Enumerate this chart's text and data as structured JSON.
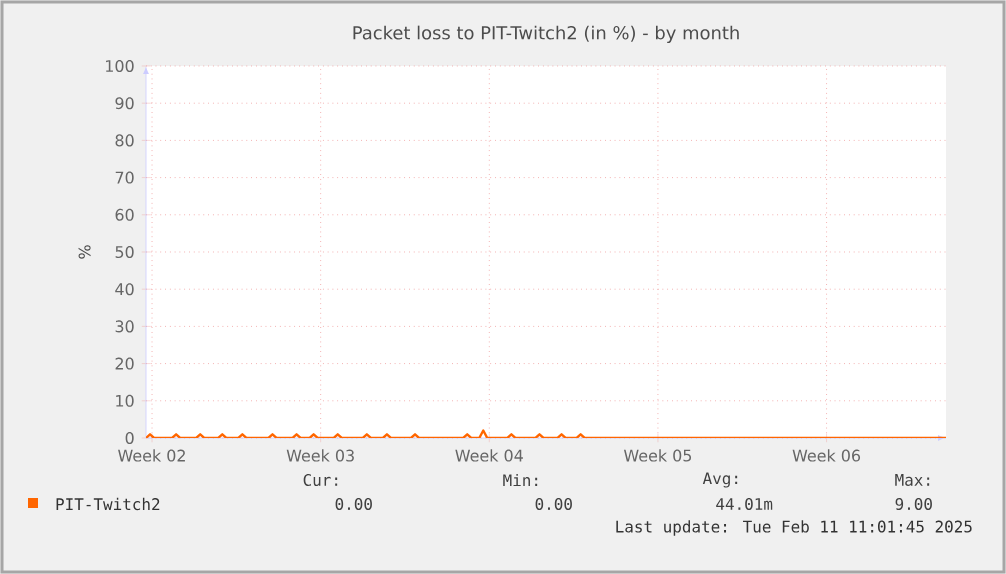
{
  "chart_data": {
    "type": "line",
    "title": "Packet loss to PIT-Twitch2 (in %) - by month",
    "ylabel": "%",
    "xlim": [
      "2025-01-09T06:00",
      "2025-02-11T11:00"
    ],
    "ylim": [
      0,
      100
    ],
    "xticks": [
      {
        "value": "2025-01-09T12:00",
        "label": "Week 02"
      },
      {
        "value": "2025-01-16T12:00",
        "label": "Week 03"
      },
      {
        "value": "2025-01-23T12:00",
        "label": "Week 04"
      },
      {
        "value": "2025-01-30T12:00",
        "label": "Week 05"
      },
      {
        "value": "2025-02-06T12:00",
        "label": "Week 06"
      }
    ],
    "yticks": [
      0,
      10,
      20,
      30,
      40,
      50,
      60,
      70,
      80,
      90,
      100
    ],
    "grid": true,
    "legend": "bottom",
    "series": [
      {
        "name": "PIT-Twitch2",
        "color": "#ff6600",
        "x": [
          "2025-01-09T06:00",
          "2025-01-09T10:00",
          "2025-01-09T14:00",
          "2025-01-10T08:00",
          "2025-01-10T12:00",
          "2025-01-10T16:00",
          "2025-01-11T08:00",
          "2025-01-11T12:00",
          "2025-01-11T16:00",
          "2025-01-12T06:00",
          "2025-01-12T10:00",
          "2025-01-12T14:00",
          "2025-01-13T02:00",
          "2025-01-13T06:00",
          "2025-01-13T10:00",
          "2025-01-14T08:00",
          "2025-01-14T12:00",
          "2025-01-14T16:00",
          "2025-01-15T08:00",
          "2025-01-15T12:00",
          "2025-01-15T16:00",
          "2025-01-16T01:00",
          "2025-01-16T05:00",
          "2025-01-16T09:00",
          "2025-01-17T01:00",
          "2025-01-17T05:00",
          "2025-01-17T09:00",
          "2025-01-18T06:00",
          "2025-01-18T10:00",
          "2025-01-18T14:00",
          "2025-01-19T02:00",
          "2025-01-19T06:00",
          "2025-01-19T10:00",
          "2025-01-20T06:00",
          "2025-01-20T10:00",
          "2025-01-20T14:00",
          "2025-01-22T10:00",
          "2025-01-22T14:00",
          "2025-01-22T18:00",
          "2025-01-23T02:00",
          "2025-01-23T06:00",
          "2025-01-23T10:00",
          "2025-01-24T06:00",
          "2025-01-24T10:00",
          "2025-01-24T14:00",
          "2025-01-25T10:00",
          "2025-01-25T14:00",
          "2025-01-25T18:00",
          "2025-01-26T08:00",
          "2025-01-26T12:00",
          "2025-01-26T16:00",
          "2025-01-27T03:00",
          "2025-01-27T07:00",
          "2025-01-27T11:00",
          "2025-02-11T11:00"
        ],
        "values": [
          0,
          1,
          0,
          0,
          1,
          0,
          0,
          1,
          0,
          0,
          1,
          0,
          0,
          1,
          0,
          0,
          1,
          0,
          0,
          1,
          0,
          0,
          1,
          0,
          0,
          1,
          0,
          0,
          1,
          0,
          0,
          1,
          0,
          0,
          1,
          0,
          0,
          1,
          0,
          0,
          2,
          0,
          0,
          1,
          0,
          0,
          1,
          0,
          0,
          1,
          0,
          0,
          1,
          0,
          0
        ]
      }
    ],
    "annotations": [
      "Cur:",
      "Min:",
      "Avg:",
      "Max:",
      "0.00",
      "0.00",
      "44.01m",
      "9.00",
      "Last update: Tue Feb 11 11:01:45 2025"
    ]
  }
}
